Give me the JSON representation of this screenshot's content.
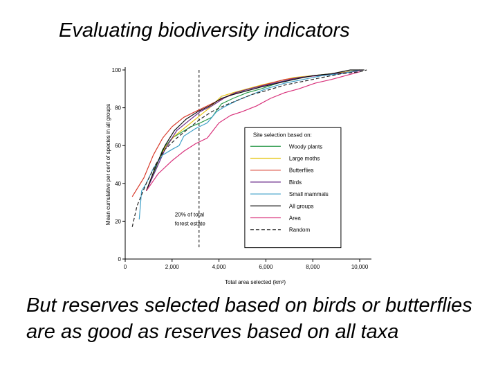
{
  "slide": {
    "title": "Evaluating biodiversity indicators",
    "body": "But reserves selected based on birds or butterflies are as good as reserves based on all taxa"
  },
  "chart_data": {
    "type": "line",
    "xlabel": "Total area selected (km²)",
    "ylabel": "Mean cumulative per cent of species in all groups",
    "xlim": [
      0,
      10500
    ],
    "ylim": [
      0,
      100
    ],
    "x_ticks": [
      0,
      2000,
      4000,
      6000,
      8000,
      10000
    ],
    "x_tick_labels": [
      "0",
      "2,000",
      "4,000",
      "6,000",
      "8,000",
      "10,000"
    ],
    "y_ticks": [
      0,
      20,
      40,
      60,
      80,
      100
    ],
    "y_tick_labels": [
      "0",
      "20",
      "40",
      "60",
      "80",
      "100"
    ],
    "grid": false,
    "legend": {
      "title": "Site selection based on:",
      "placement": "center-right"
    },
    "annotation": {
      "x": 3150,
      "label_line1": "20% of total",
      "label_line2": "forest estate"
    },
    "series": [
      {
        "name": "Woody plants",
        "color": "#2a9a4a",
        "dash": "",
        "points": [
          [
            900,
            36
          ],
          [
            1300,
            48
          ],
          [
            1600,
            58
          ],
          [
            2000,
            64
          ],
          [
            2400,
            67
          ],
          [
            2800,
            70
          ],
          [
            3200,
            72
          ],
          [
            3700,
            75
          ],
          [
            4100,
            82
          ],
          [
            4600,
            85
          ],
          [
            5200,
            88
          ],
          [
            5800,
            90
          ],
          [
            6500,
            93
          ],
          [
            7200,
            95
          ],
          [
            8000,
            97
          ],
          [
            8800,
            98
          ],
          [
            9500,
            99
          ],
          [
            10000,
            100
          ]
        ]
      },
      {
        "name": "Large moths",
        "color": "#e6c619",
        "dash": "",
        "points": [
          [
            900,
            36
          ],
          [
            1300,
            49
          ],
          [
            1700,
            59
          ],
          [
            2100,
            65
          ],
          [
            2600,
            70
          ],
          [
            3100,
            75
          ],
          [
            3600,
            80
          ],
          [
            4100,
            86
          ],
          [
            4600,
            88
          ],
          [
            5200,
            90
          ],
          [
            5800,
            92
          ],
          [
            6500,
            94
          ],
          [
            7200,
            96
          ],
          [
            8000,
            97
          ],
          [
            8800,
            98
          ],
          [
            9500,
            99
          ],
          [
            10000,
            100
          ]
        ]
      },
      {
        "name": "Butterflies",
        "color": "#d83a2a",
        "dash": "",
        "points": [
          [
            300,
            33
          ],
          [
            800,
            43
          ],
          [
            1200,
            55
          ],
          [
            1600,
            64
          ],
          [
            2000,
            70
          ],
          [
            2500,
            75
          ],
          [
            3000,
            78
          ],
          [
            3500,
            81
          ],
          [
            4000,
            84
          ],
          [
            4500,
            87
          ],
          [
            5000,
            89
          ],
          [
            5600,
            91
          ],
          [
            6200,
            93
          ],
          [
            6800,
            95
          ],
          [
            7500,
            96
          ],
          [
            8200,
            97
          ],
          [
            9000,
            98
          ],
          [
            9600,
            99
          ],
          [
            10000,
            100
          ]
        ]
      },
      {
        "name": "Birds",
        "color": "#6a2a8a",
        "dash": "",
        "points": [
          [
            900,
            36
          ],
          [
            1300,
            47
          ],
          [
            1700,
            58
          ],
          [
            2200,
            68
          ],
          [
            2700,
            73
          ],
          [
            3200,
            78
          ],
          [
            3700,
            81
          ],
          [
            4200,
            85
          ],
          [
            4700,
            88
          ],
          [
            5300,
            90
          ],
          [
            6000,
            92
          ],
          [
            6700,
            94
          ],
          [
            7400,
            96
          ],
          [
            8200,
            97
          ],
          [
            9000,
            98
          ],
          [
            9700,
            99
          ],
          [
            10100,
            100
          ]
        ]
      },
      {
        "name": "Small mammals",
        "color": "#3fa0c8",
        "dash": "",
        "points": [
          [
            600,
            21
          ],
          [
            700,
            36
          ],
          [
            900,
            40
          ],
          [
            1200,
            48
          ],
          [
            1600,
            55
          ],
          [
            2000,
            58
          ],
          [
            2300,
            60
          ],
          [
            2500,
            65
          ],
          [
            3000,
            69
          ],
          [
            3500,
            72
          ],
          [
            3900,
            78
          ],
          [
            4300,
            81
          ],
          [
            4800,
            84
          ],
          [
            5400,
            87
          ],
          [
            6000,
            90
          ],
          [
            6800,
            93
          ],
          [
            7600,
            95
          ],
          [
            8400,
            97
          ],
          [
            9200,
            98
          ],
          [
            10000,
            100
          ]
        ]
      },
      {
        "name": "All groups",
        "color": "#111111",
        "dash": "",
        "points": [
          [
            900,
            36
          ],
          [
            1300,
            49
          ],
          [
            1700,
            60
          ],
          [
            2100,
            68
          ],
          [
            2600,
            74
          ],
          [
            3100,
            78
          ],
          [
            3600,
            81
          ],
          [
            4100,
            85
          ],
          [
            4600,
            87
          ],
          [
            5200,
            89
          ],
          [
            5800,
            91
          ],
          [
            6500,
            93
          ],
          [
            7200,
            95
          ],
          [
            8000,
            97
          ],
          [
            8800,
            98
          ],
          [
            9600,
            100
          ],
          [
            10200,
            100
          ]
        ]
      },
      {
        "name": "Area",
        "color": "#d8307a",
        "dash": "",
        "points": [
          [
            900,
            36
          ],
          [
            1400,
            45
          ],
          [
            2000,
            52
          ],
          [
            2500,
            57
          ],
          [
            3000,
            61
          ],
          [
            3500,
            64
          ],
          [
            4000,
            72
          ],
          [
            4500,
            76
          ],
          [
            5000,
            78
          ],
          [
            5600,
            81
          ],
          [
            6200,
            85
          ],
          [
            6800,
            88
          ],
          [
            7400,
            90
          ],
          [
            8100,
            93
          ],
          [
            8800,
            95
          ],
          [
            9400,
            97
          ],
          [
            10000,
            99
          ]
        ]
      },
      {
        "name": "Random",
        "color": "#222222",
        "dash": "5,3",
        "points": [
          [
            300,
            17
          ],
          [
            500,
            28
          ],
          [
            900,
            40
          ],
          [
            1300,
            50
          ],
          [
            1700,
            58
          ],
          [
            2200,
            64
          ],
          [
            2700,
            69
          ],
          [
            3200,
            74
          ],
          [
            3700,
            78
          ],
          [
            4200,
            81
          ],
          [
            4800,
            84
          ],
          [
            5400,
            87
          ],
          [
            6000,
            89
          ],
          [
            6800,
            92
          ],
          [
            7600,
            94
          ],
          [
            8400,
            96
          ],
          [
            9200,
            98
          ],
          [
            10000,
            99
          ],
          [
            10300,
            100
          ]
        ]
      }
    ]
  }
}
